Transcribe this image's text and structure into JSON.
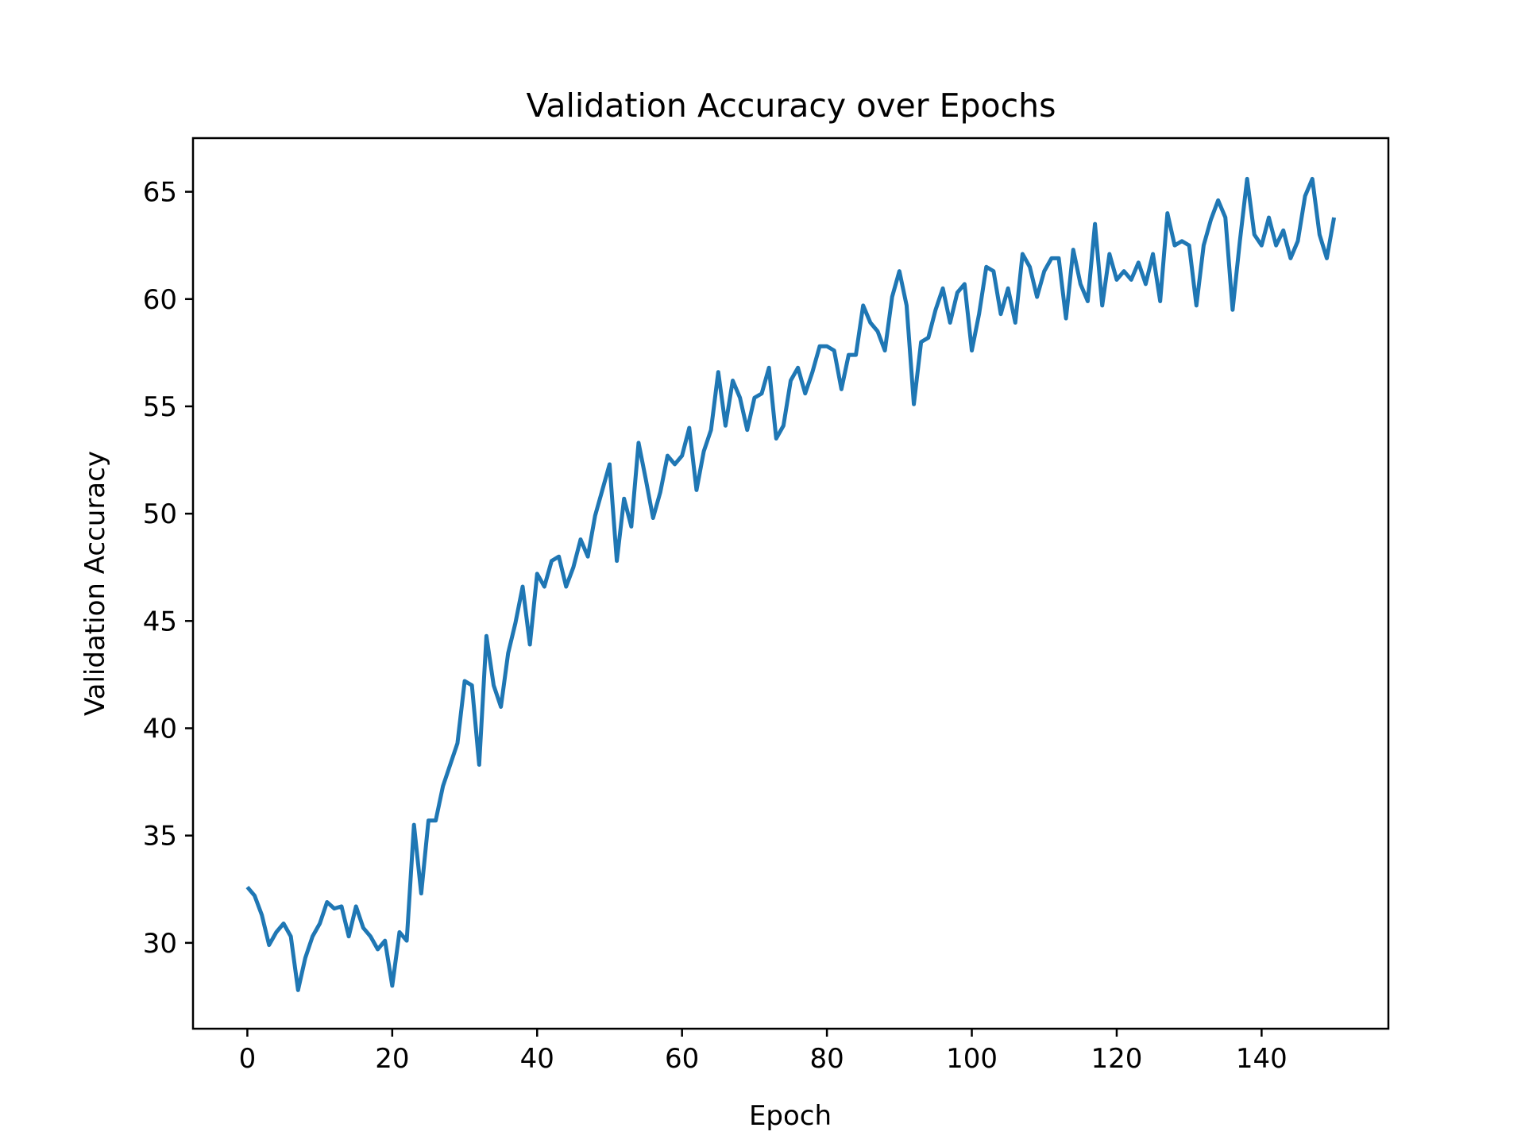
{
  "chart_data": {
    "type": "line",
    "title": "Validation Accuracy over Epochs",
    "xlabel": "Epoch",
    "ylabel": "Validation Accuracy",
    "xlim": [
      -7.5,
      157.5
    ],
    "ylim": [
      26.0,
      67.5
    ],
    "xticks": [
      0,
      20,
      40,
      60,
      80,
      100,
      120,
      140
    ],
    "yticks": [
      30,
      35,
      40,
      45,
      50,
      55,
      60,
      65
    ],
    "grid": false,
    "legend": "none",
    "colors": {
      "line": "#1f77b4",
      "axes": "#000000",
      "background": "#ffffff"
    },
    "series": [
      {
        "x": [
          0,
          1,
          2,
          3,
          4,
          5,
          6,
          7,
          8,
          9,
          10,
          11,
          12,
          13,
          14,
          15,
          16,
          17,
          18,
          19,
          20,
          21,
          22,
          23,
          24,
          25,
          26,
          27,
          28,
          29,
          30,
          31,
          32,
          33,
          34,
          35,
          36,
          37,
          38,
          39,
          40,
          41,
          42,
          43,
          44,
          45,
          46,
          47,
          48,
          49,
          50,
          51,
          52,
          53,
          54,
          55,
          56,
          57,
          58,
          59,
          60,
          61,
          62,
          63,
          64,
          65,
          66,
          67,
          68,
          69,
          70,
          71,
          72,
          73,
          74,
          75,
          76,
          77,
          78,
          79,
          80,
          81,
          82,
          83,
          84,
          85,
          86,
          87,
          88,
          89,
          90,
          91,
          92,
          93,
          94,
          95,
          96,
          97,
          98,
          99,
          100,
          101,
          102,
          103,
          104,
          105,
          106,
          107,
          108,
          109,
          110,
          111,
          112,
          113,
          114,
          115,
          116,
          117,
          118,
          119,
          120,
          121,
          122,
          123,
          124,
          125,
          126,
          127,
          128,
          129,
          130,
          131,
          132,
          133,
          134,
          135,
          136,
          137,
          138,
          139,
          140,
          141,
          142,
          143,
          144,
          145,
          146,
          147,
          148,
          149,
          150
        ],
        "values": [
          32.6,
          32.2,
          31.3,
          29.9,
          30.5,
          30.9,
          30.3,
          27.8,
          29.3,
          30.3,
          30.9,
          31.9,
          31.6,
          31.7,
          30.3,
          31.7,
          30.7,
          30.3,
          29.7,
          30.1,
          28.0,
          30.5,
          30.1,
          35.5,
          32.3,
          35.7,
          35.7,
          37.3,
          38.3,
          39.3,
          42.2,
          42.0,
          38.3,
          44.3,
          42.0,
          41.0,
          43.5,
          44.9,
          46.6,
          43.9,
          47.2,
          46.6,
          47.8,
          48.0,
          46.6,
          47.5,
          48.8,
          48.0,
          49.9,
          51.1,
          52.3,
          47.8,
          50.7,
          49.4,
          53.3,
          51.6,
          49.8,
          51.0,
          52.7,
          52.3,
          52.7,
          54.0,
          51.1,
          52.9,
          53.9,
          56.6,
          54.1,
          56.2,
          55.4,
          53.9,
          55.4,
          55.6,
          56.8,
          53.5,
          54.1,
          56.2,
          56.8,
          55.6,
          56.6,
          57.8,
          57.8,
          57.6,
          55.8,
          57.4,
          57.4,
          59.7,
          58.9,
          58.5,
          57.6,
          60.1,
          61.3,
          59.7,
          55.1,
          58.0,
          58.2,
          59.5,
          60.5,
          58.9,
          60.3,
          60.7,
          57.6,
          59.3,
          61.5,
          61.3,
          59.3,
          60.5,
          58.9,
          62.1,
          61.5,
          60.1,
          61.3,
          61.9,
          61.9,
          59.1,
          62.3,
          60.7,
          59.9,
          63.5,
          59.7,
          62.1,
          60.9,
          61.3,
          60.9,
          61.7,
          60.7,
          62.1,
          59.9,
          64.0,
          62.5,
          62.7,
          62.5,
          59.7,
          62.5,
          63.7,
          64.6,
          63.8,
          59.5,
          62.7,
          65.6,
          63.0,
          62.5,
          63.8,
          62.5,
          63.2,
          61.9,
          62.7,
          64.8,
          65.6,
          63.0,
          61.9,
          63.8
        ]
      }
    ]
  }
}
